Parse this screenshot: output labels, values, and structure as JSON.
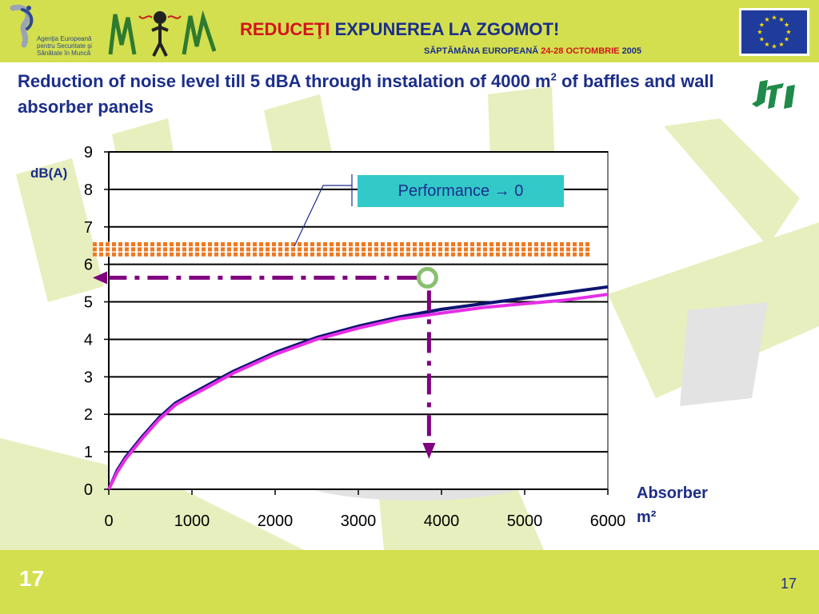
{
  "header": {
    "headline_red": "REDUCEŢI",
    "headline_blue": "EXPUNEREA LA ZGOMOT!",
    "sub_prefix": "SĂPTĂMÂNA EUROPEANĂ",
    "sub_dates": "24-28 OCTOMBRIE",
    "sub_year": "2005",
    "agency_lines": [
      "Agenţia Europeană",
      "pentru Securitate şi",
      "Sănătate în Muncă"
    ],
    "brand_color": "#d3df4e",
    "logos": [
      "eu-osha-logo",
      "campaign-noise-logo",
      "eu-flag",
      "jti-logo"
    ]
  },
  "slide": {
    "title_main": "Reduction of noise level till 5 dBA through instalation of 4000 m",
    "title_sup": "2",
    "title_rest": " of baffles and wall absorber panels",
    "number_left": "17",
    "number_right": "17"
  },
  "chart_data": {
    "type": "line",
    "ylabel": "dB(A)",
    "xlabel_line1": "Absorber",
    "xlabel_line2": "m²",
    "xlim": [
      0,
      6000
    ],
    "ylim": [
      0,
      9
    ],
    "x_ticks": [
      0,
      1000,
      2000,
      3000,
      4000,
      5000,
      6000
    ],
    "y_ticks": [
      0,
      1,
      2,
      3,
      4,
      5,
      6,
      7,
      8,
      9
    ],
    "grid": "horizontal",
    "series": [
      {
        "color": "#0d1470",
        "x": [
          0,
          100,
          200,
          400,
          600,
          800,
          1000,
          1500,
          2000,
          2500,
          3000,
          3500,
          4000,
          4500,
          5000,
          5500,
          6000
        ],
        "y": [
          0,
          0.5,
          0.85,
          1.4,
          1.9,
          2.3,
          2.55,
          3.15,
          3.65,
          4.05,
          4.35,
          4.6,
          4.8,
          4.95,
          5.1,
          5.25,
          5.4
        ]
      },
      {
        "color": "#e62ee6",
        "x": [
          0,
          100,
          200,
          400,
          600,
          800,
          1000,
          1500,
          2000,
          2500,
          3000,
          3500,
          4000,
          4500,
          5000,
          5500,
          6000
        ],
        "y": [
          0,
          0.45,
          0.8,
          1.35,
          1.85,
          2.25,
          2.5,
          3.1,
          3.6,
          4.0,
          4.3,
          4.55,
          4.7,
          4.85,
          4.95,
          5.05,
          5.2
        ]
      }
    ],
    "band": {
      "y_from": 6.2,
      "y_to": 6.6,
      "color": "#f07820"
    },
    "marker": {
      "x": 3850,
      "y": 5.6,
      "color": "#88c070"
    },
    "guide_color": "#800080",
    "callout": "Performance → 0"
  }
}
